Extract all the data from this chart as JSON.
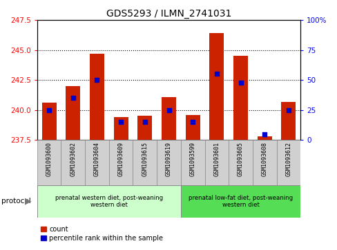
{
  "title": "GDS5293 / ILMN_2741031",
  "samples": [
    "GSM1093600",
    "GSM1093602",
    "GSM1093604",
    "GSM1093609",
    "GSM1093615",
    "GSM1093619",
    "GSM1093599",
    "GSM1093601",
    "GSM1093605",
    "GSM1093608",
    "GSM1093612"
  ],
  "count_values": [
    240.6,
    242.0,
    244.7,
    239.4,
    239.5,
    241.1,
    239.6,
    246.4,
    244.5,
    237.8,
    240.7
  ],
  "percentile_values": [
    25,
    35,
    50,
    15,
    15,
    25,
    15,
    55,
    48,
    5,
    25
  ],
  "baseline": 237.5,
  "ylim_left": [
    237.5,
    247.5
  ],
  "ylim_right": [
    0,
    100
  ],
  "yticks_left": [
    237.5,
    240.0,
    242.5,
    245.0,
    247.5
  ],
  "yticks_right": [
    0,
    25,
    50,
    75,
    100
  ],
  "ytick_labels_right": [
    "0",
    "25",
    "50",
    "75",
    "100%"
  ],
  "bar_color": "#cc2200",
  "dot_color": "#0000cc",
  "background_label": "#d0d0d0",
  "group1_indices": [
    0,
    1,
    2,
    3,
    4,
    5
  ],
  "group2_indices": [
    6,
    7,
    8,
    9,
    10
  ],
  "group1_label": "prenatal western diet, post-weaning\nwestern diet",
  "group2_label": "prenatal low-fat diet, post-weaning\nwestern diet",
  "group1_color": "#ccffcc",
  "group2_color": "#55dd55",
  "protocol_label": "protocol",
  "legend_count_label": "count",
  "legend_pct_label": "percentile rank within the sample"
}
